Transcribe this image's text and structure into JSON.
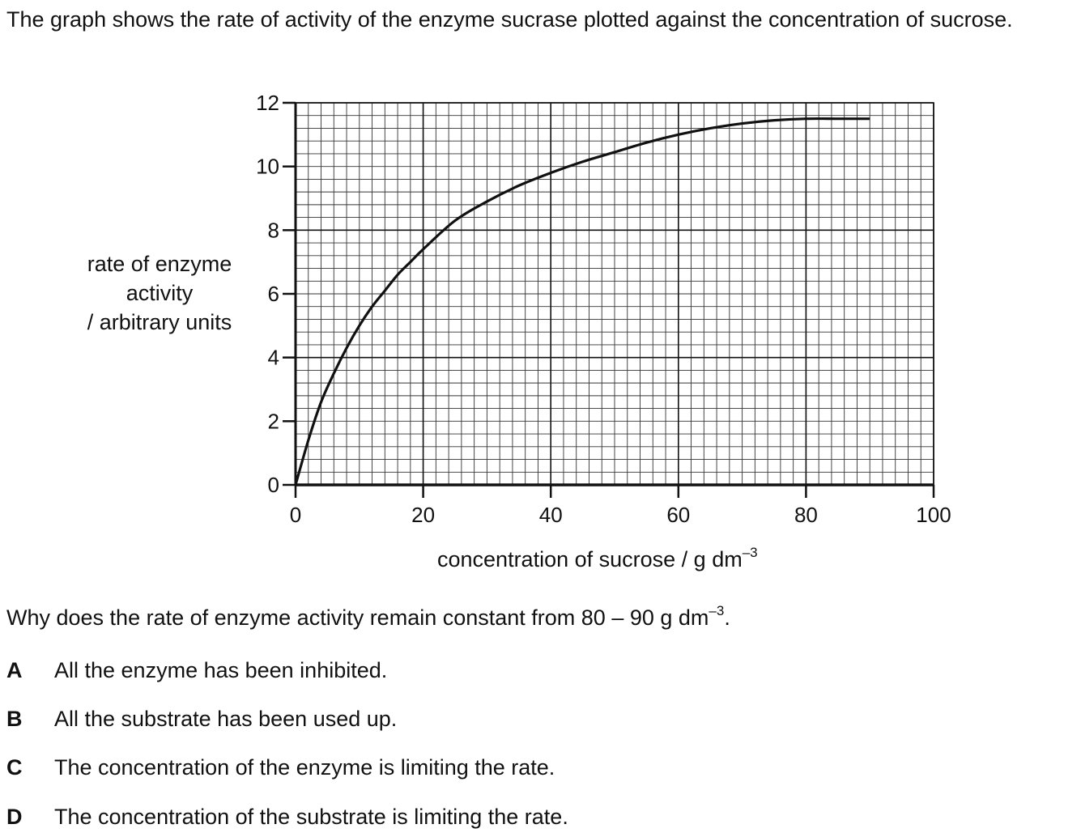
{
  "intro": "The graph shows the rate of activity of the enzyme sucrase plotted against the concentration of sucrose.",
  "chart_data": {
    "type": "line",
    "ylabel_lines": [
      "rate of enzyme",
      "activity",
      "/ arbitrary units"
    ],
    "xlabel": "concentration of sucrose / g dm",
    "xlabel_sup": "–3",
    "xlim": [
      0,
      100
    ],
    "ylim": [
      0,
      12
    ],
    "x_ticks": [
      0,
      20,
      40,
      60,
      80,
      100
    ],
    "y_ticks": [
      0,
      2,
      4,
      6,
      8,
      10,
      12
    ],
    "grid": true,
    "series": [
      {
        "x": [
          0,
          2,
          4,
          6,
          8,
          10,
          12,
          14,
          16,
          18,
          20,
          25,
          30,
          35,
          40,
          45,
          50,
          55,
          60,
          65,
          70,
          75,
          80,
          85,
          90
        ],
        "y": [
          0,
          1.4,
          2.6,
          3.5,
          4.3,
          5.0,
          5.6,
          6.1,
          6.6,
          7.0,
          7.4,
          8.3,
          8.9,
          9.4,
          9.8,
          10.15,
          10.45,
          10.75,
          11.0,
          11.2,
          11.35,
          11.45,
          11.5,
          11.5,
          11.5
        ]
      }
    ]
  },
  "question": {
    "text": "Why does the rate of enzyme activity remain constant from 80 – 90 g dm",
    "sup": "–3",
    "end": "."
  },
  "options": [
    {
      "letter": "A",
      "text": "All the enzyme has been inhibited."
    },
    {
      "letter": "B",
      "text": "All the substrate has been used up."
    },
    {
      "letter": "C",
      "text": "The concentration of the enzyme is limiting the rate."
    },
    {
      "letter": "D",
      "text": "The concentration of the substrate is limiting the rate."
    }
  ]
}
